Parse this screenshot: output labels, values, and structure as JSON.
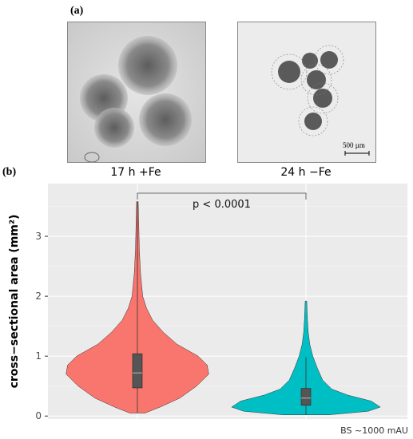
{
  "panel_a": {
    "letter": "(a)",
    "left_caption": "17 h +Fe",
    "right_caption": "24 h −Fe",
    "scale_bar_label": "500 µm"
  },
  "panel_b": {
    "letter": "(b)"
  },
  "chart_data": {
    "type": "violin",
    "categories": [
      "17 h +Fe",
      "24 h −Fe"
    ],
    "ylabel": "cross−sectional area (mm²)",
    "xlabel": "",
    "ylim": [
      -0.05,
      3.88
    ],
    "yticks": [
      0,
      1,
      2,
      3
    ],
    "grid": true,
    "significance": {
      "label": "p < 0.0001",
      "between": [
        0,
        1
      ]
    },
    "series": [
      {
        "color": "#f8766d",
        "min": 0.05,
        "max": 3.58,
        "box": {
          "q1": 0.47,
          "median": 0.72,
          "q3": 1.04,
          "whisker_low": 0.05,
          "whisker_high": 3.58
        },
        "density": [
          [
            0.05,
            0.1
          ],
          [
            0.15,
            0.3
          ],
          [
            0.3,
            0.56
          ],
          [
            0.5,
            0.78
          ],
          [
            0.7,
            0.94
          ],
          [
            0.85,
            0.92
          ],
          [
            1.0,
            0.8
          ],
          [
            1.2,
            0.52
          ],
          [
            1.4,
            0.34
          ],
          [
            1.6,
            0.2
          ],
          [
            1.8,
            0.12
          ],
          [
            2.0,
            0.07
          ],
          [
            2.4,
            0.04
          ],
          [
            2.8,
            0.025
          ],
          [
            3.2,
            0.018
          ],
          [
            3.58,
            0.01
          ]
        ]
      },
      {
        "color": "#00bfc4",
        "min": 0.02,
        "max": 1.92,
        "box": {
          "q1": 0.18,
          "median": 0.3,
          "q3": 0.46,
          "whisker_low": 0.02,
          "whisker_high": 0.98
        },
        "density": [
          [
            0.02,
            0.3
          ],
          [
            0.08,
            0.82
          ],
          [
            0.15,
            0.98
          ],
          [
            0.25,
            0.86
          ],
          [
            0.35,
            0.55
          ],
          [
            0.45,
            0.34
          ],
          [
            0.6,
            0.22
          ],
          [
            0.8,
            0.15
          ],
          [
            1.0,
            0.09
          ],
          [
            1.2,
            0.05
          ],
          [
            1.4,
            0.03
          ],
          [
            1.6,
            0.02
          ],
          [
            1.92,
            0.01
          ]
        ]
      }
    ]
  },
  "footer": "BS ~1000 mAU"
}
